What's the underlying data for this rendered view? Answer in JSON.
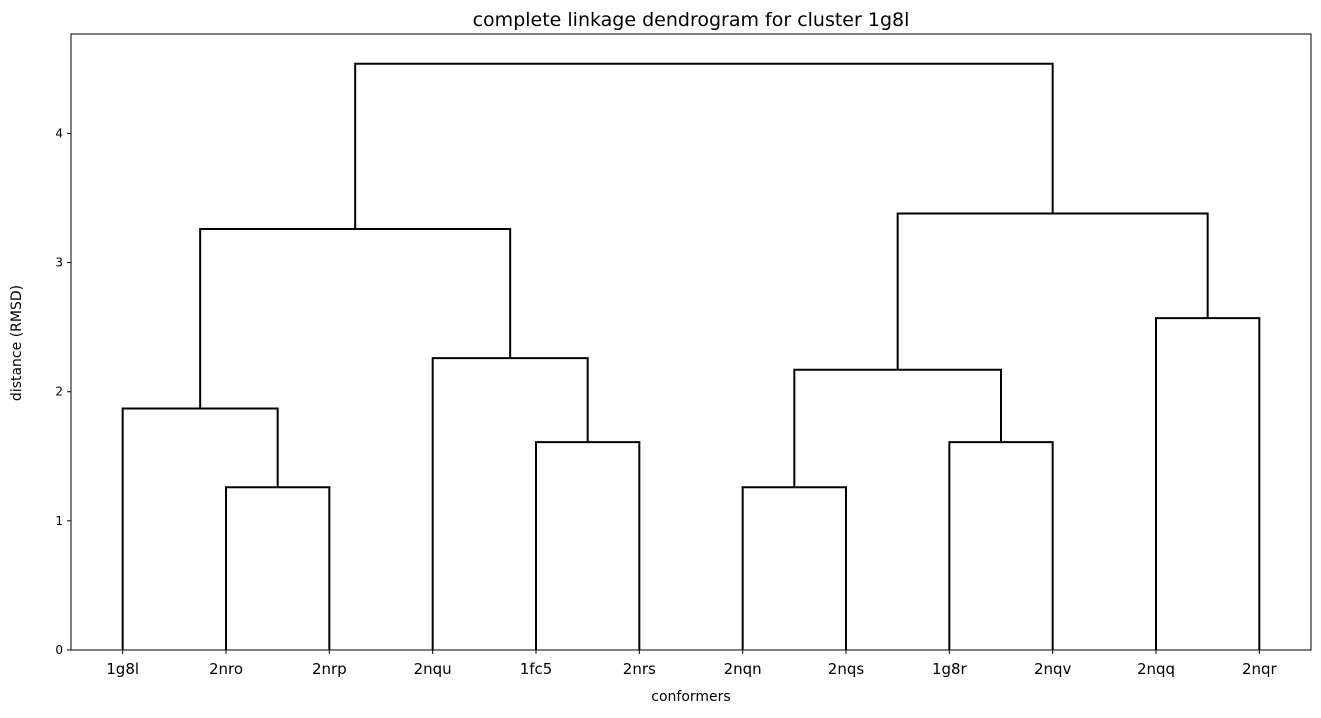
{
  "chart_data": {
    "type": "dendrogram",
    "title": "complete linkage dendrogram for cluster 1g8l",
    "xlabel": "conformers",
    "ylabel": "distance (RMSD)",
    "leaves": [
      "1g8l",
      "2nro",
      "2nrp",
      "2nqu",
      "1fc5",
      "2nrs",
      "2nqn",
      "2nqs",
      "1g8r",
      "2nqv",
      "2nqq",
      "2nqr"
    ],
    "ylim": [
      0,
      4.77
    ],
    "yticks": [
      0,
      1,
      2,
      3,
      4
    ],
    "ytick_labels": [
      "0",
      "1",
      "2",
      "3",
      "4"
    ],
    "merges": [
      {
        "left": "2nro",
        "right": "2nrp",
        "distance": 1.26
      },
      {
        "left": "1g8l",
        "right": "2nro+2nrp",
        "distance": 1.87
      },
      {
        "left": "1fc5",
        "right": "2nrs",
        "distance": 1.61
      },
      {
        "left": "2nqu",
        "right": "1fc5+2nrs",
        "distance": 2.26
      },
      {
        "left": "1g8l+2nro+2nrp",
        "right": "2nqu+1fc5+2nrs",
        "distance": 3.26
      },
      {
        "left": "2nqn",
        "right": "2nqs",
        "distance": 1.26
      },
      {
        "left": "1g8r",
        "right": "2nqv",
        "distance": 1.61
      },
      {
        "left": "2nqn+2nqs",
        "right": "1g8r+2nqv",
        "distance": 2.17
      },
      {
        "left": "2nqq",
        "right": "2nqr",
        "distance": 2.57
      },
      {
        "left": "2nqn+2nqs+1g8r+2nqv",
        "right": "2nqq+2nqr",
        "distance": 3.38
      },
      {
        "left": "1g8l+2nro+2nrp+2nqu+1fc5+2nrs",
        "right": "2nqn+2nqs+1g8r+2nqv+2nqq+2nqr",
        "distance": 4.54
      }
    ],
    "line_color": "#000000",
    "grid": false,
    "legend": "none"
  }
}
